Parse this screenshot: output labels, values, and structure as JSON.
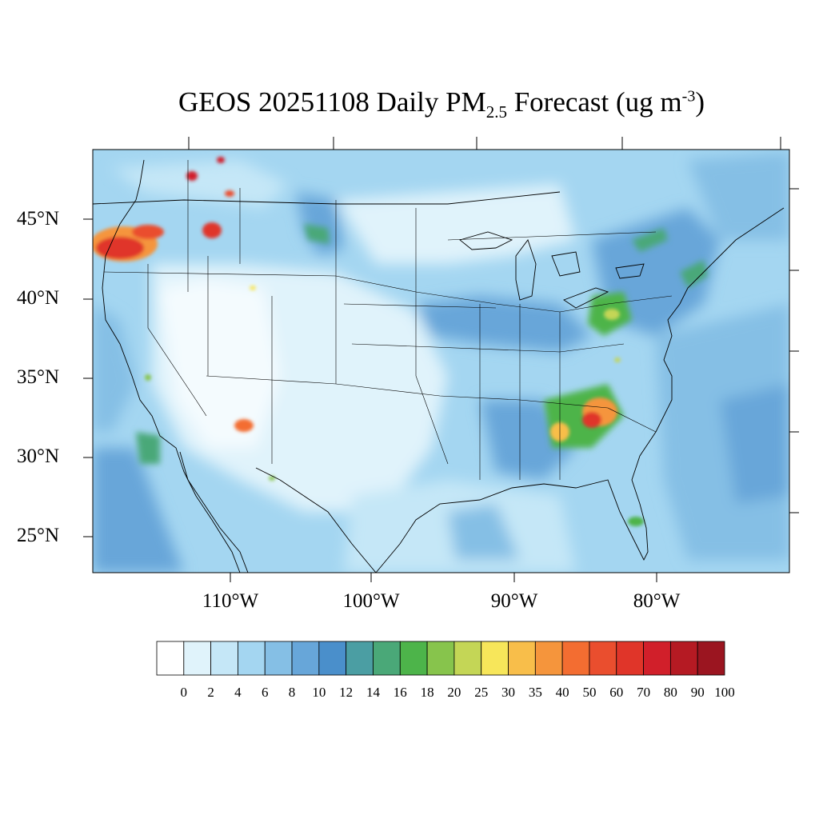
{
  "title": {
    "prefix": "GEOS 20251108 Daily PM",
    "sub": "2.5",
    "middle": " Forecast (ug m",
    "sup": "-3",
    "suffix": ")"
  },
  "lat_labels": [
    "45°N",
    "40°N",
    "35°N",
    "30°N",
    "25°N"
  ],
  "lon_labels": [
    "110°W",
    "100°W",
    "90°W",
    "80°W"
  ],
  "colorbar": {
    "labels": [
      "0",
      "2",
      "4",
      "6",
      "8",
      "10",
      "12",
      "14",
      "16",
      "18",
      "20",
      "25",
      "30",
      "35",
      "40",
      "50",
      "60",
      "70",
      "80",
      "90",
      "100"
    ],
    "colors": [
      "#ffffff",
      "#e0f3fb",
      "#c5e7f7",
      "#a4d6f1",
      "#85bfe5",
      "#67a6d9",
      "#4a8fcb",
      "#4b9ea3",
      "#4aa878",
      "#4db44a",
      "#87c44c",
      "#c4d656",
      "#f7e65a",
      "#f8be4a",
      "#f5953c",
      "#f36d31",
      "#ea4e2e",
      "#e03529",
      "#d11f2a",
      "#b51a23",
      "#9b1520"
    ]
  }
}
